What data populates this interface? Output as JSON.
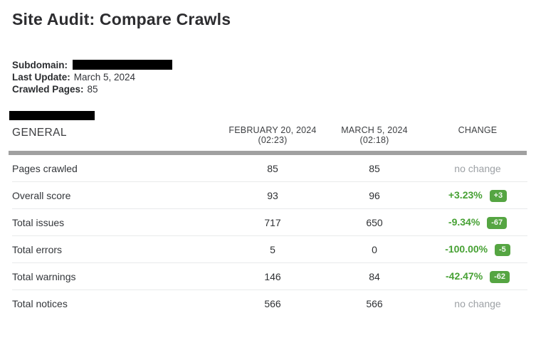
{
  "page": {
    "title": "Site Audit: Compare Crawls"
  },
  "meta": {
    "subdomain_label": "Subdomain:",
    "last_update_label": "Last Update:",
    "last_update_value": "March 5, 2024",
    "crawled_pages_label": "Crawled Pages:",
    "crawled_pages_value": "85"
  },
  "table": {
    "section_label": "GENERAL",
    "columns": [
      {
        "line1": "FEBRUARY 20, 2024",
        "line2": "(02:23)"
      },
      {
        "line1": "MARCH 5, 2024",
        "line2": "(02:18)"
      },
      {
        "line1": "CHANGE",
        "line2": ""
      }
    ],
    "rows": [
      {
        "label": "Pages crawled",
        "col1": "85",
        "col2": "85",
        "no_change": "no change"
      },
      {
        "label": "Overall score",
        "col1": "93",
        "col2": "96",
        "percent": "+3.23%",
        "badge": "+3"
      },
      {
        "label": "Total issues",
        "col1": "717",
        "col2": "650",
        "percent": "-9.34%",
        "badge": "-67"
      },
      {
        "label": "Total errors",
        "col1": "5",
        "col2": "0",
        "percent": "-100.00%",
        "badge": "-5"
      },
      {
        "label": "Total warnings",
        "col1": "146",
        "col2": "84",
        "percent": "-42.47%",
        "badge": "-62"
      },
      {
        "label": "Total notices",
        "col1": "566",
        "col2": "566",
        "no_change": "no change"
      }
    ]
  },
  "colors": {
    "positive_text_green": "#47a134",
    "badge_green": "#55a542",
    "muted_gray": "#9da1a5",
    "redaction_black": "#000000",
    "divider_thick": "#a0a0a0"
  }
}
